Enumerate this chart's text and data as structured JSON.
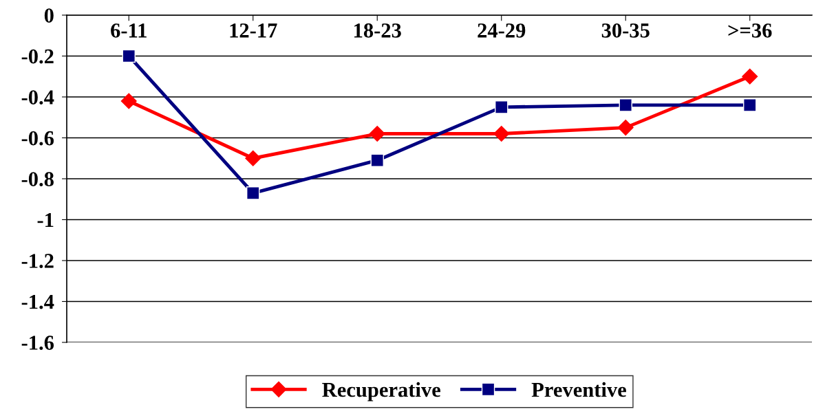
{
  "chart_data": {
    "type": "line",
    "categories": [
      "6-11",
      "12-17",
      "18-23",
      "24-29",
      "30-35",
      ">=36"
    ],
    "series": [
      {
        "name": "Recuperative",
        "color": "#ff0000",
        "marker": "diamond",
        "values": [
          -0.42,
          -0.7,
          -0.58,
          -0.58,
          -0.55,
          -0.3
        ]
      },
      {
        "name": "Preventive",
        "color": "#000080",
        "marker": "square",
        "values": [
          -0.2,
          -0.87,
          -0.71,
          -0.45,
          -0.44,
          -0.44
        ]
      }
    ],
    "ylim": [
      -1.6,
      0
    ],
    "yticks": [
      -1.6,
      -1.4,
      -1.2,
      -1,
      -0.8,
      -0.6,
      -0.4,
      -0.2,
      0
    ],
    "grid": "y",
    "legend": "bottom",
    "line_style": "solid"
  }
}
